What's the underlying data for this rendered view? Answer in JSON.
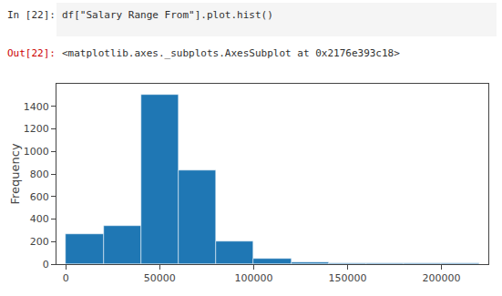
{
  "chart_data": {
    "type": "histogram",
    "annotations": [
      "In [22]:",
      "df[\"Salary Range From\"].plot.hist()",
      "Out[22]:",
      "<matplotlib.axes._subplots.AxesSubplot at 0x2176e393c18>"
    ],
    "ylabel": "Frequency",
    "bins": [
      0,
      20000,
      40000,
      60000,
      80000,
      100000,
      120000,
      140000,
      160000,
      180000,
      200000,
      220000
    ],
    "values": [
      270,
      340,
      1500,
      830,
      200,
      50,
      15,
      5,
      10,
      5,
      10
    ],
    "color": "#1f77b4",
    "xlim": [
      -5000,
      225000
    ],
    "xticks": [
      0,
      50000,
      100000,
      150000,
      200000
    ],
    "ylim": [
      0,
      1600
    ],
    "yticks": [
      0,
      200,
      400,
      600,
      800,
      1000,
      1200,
      1400
    ],
    "grid": false
  }
}
